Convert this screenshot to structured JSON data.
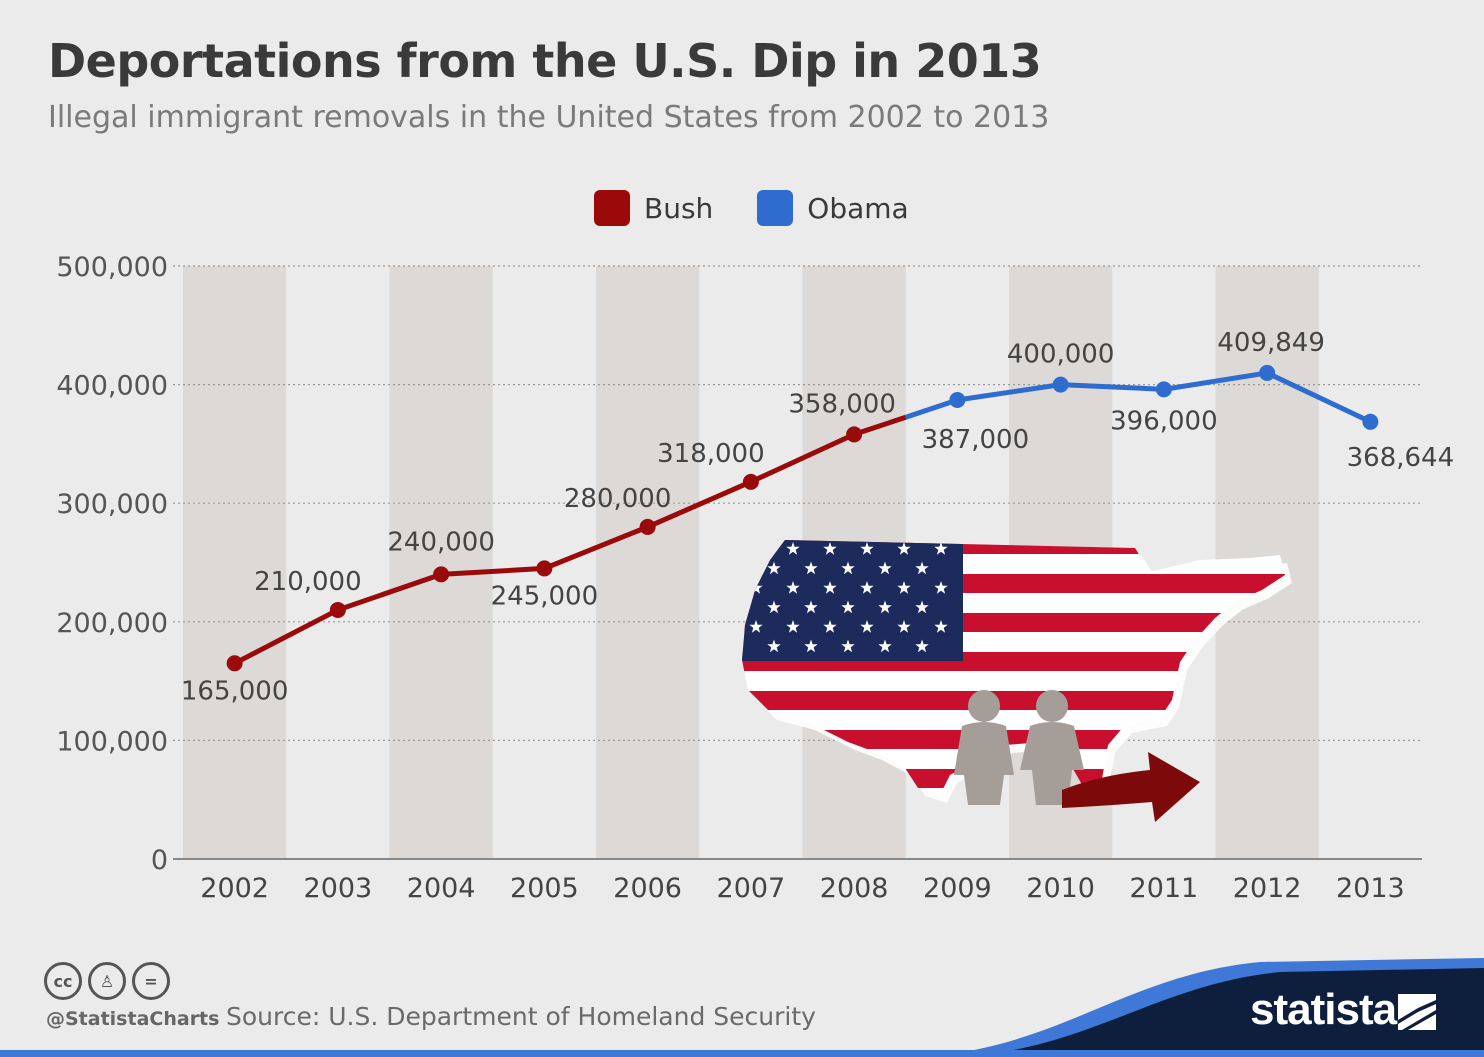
{
  "title": "Deportations from the U.S. Dip in 2013",
  "subtitle": "Illegal immigrant removals in the United States from 2002 to 2013",
  "legend": [
    {
      "name": "Bush",
      "color": "#9b0a0a"
    },
    {
      "name": "Obama",
      "color": "#2f6ccf"
    }
  ],
  "chart_data": {
    "type": "line",
    "title": "Deportations from the U.S. Dip in 2013",
    "subtitle": "Illegal immigrant removals in the United States from 2002 to 2013",
    "x": [
      "2002",
      "2003",
      "2004",
      "2005",
      "2006",
      "2007",
      "2008",
      "2009",
      "2010",
      "2011",
      "2012",
      "2013"
    ],
    "y_ticks": [
      "0",
      "100,000",
      "200,000",
      "300,000",
      "400,000",
      "500,000"
    ],
    "ylim": [
      0,
      500000
    ],
    "grid": true,
    "legend_position": "top-center",
    "series": [
      {
        "name": "Bush",
        "color": "#9b0a0a",
        "x": [
          "2002",
          "2003",
          "2004",
          "2005",
          "2006",
          "2007",
          "2008"
        ],
        "values": [
          165000,
          210000,
          240000,
          245000,
          280000,
          318000,
          358000
        ]
      },
      {
        "name": "Obama",
        "color": "#2f6ccf",
        "x": [
          "2009",
          "2010",
          "2011",
          "2012",
          "2013"
        ],
        "values": [
          387000,
          400000,
          396000,
          409849,
          368644
        ]
      }
    ],
    "data_labels": [
      "165,000",
      "210,000",
      "240,000",
      "245,000",
      "280,000",
      "318,000",
      "358,000",
      "387,000",
      "400,000",
      "396,000",
      "409,849",
      "368,644"
    ]
  },
  "footer": {
    "handle": "@StatistaCharts",
    "source": "Source: U.S. Department of Homeland Security",
    "brand": "statista",
    "license_icons": [
      "cc-icon",
      "attribution-icon",
      "no-derivatives-icon"
    ]
  },
  "illustration": "us-flag-map-with-people-and-arrow"
}
